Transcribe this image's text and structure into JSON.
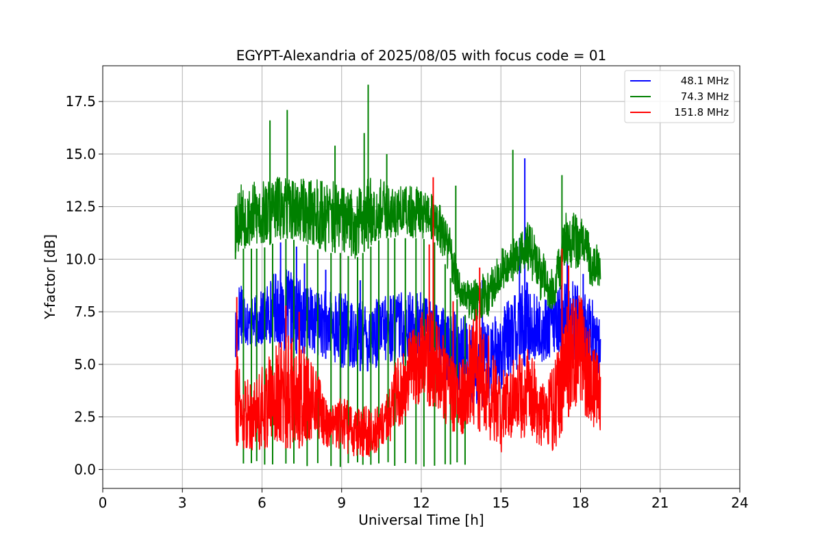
{
  "chart_data": {
    "type": "line",
    "title": "EGYPT-Alexandria of 2025/08/05 with focus code = 01",
    "xlabel": "Universal Time [h]",
    "ylabel": "Y-factor [dB]",
    "xlim": [
      0,
      24
    ],
    "ylim": [
      -0.9,
      19.2
    ],
    "xticks": [
      0,
      3,
      6,
      9,
      12,
      15,
      18,
      21,
      24
    ],
    "xtick_labels": [
      "0",
      "3",
      "6",
      "9",
      "12",
      "15",
      "18",
      "21",
      "24"
    ],
    "yticks": [
      0.0,
      2.5,
      5.0,
      7.5,
      10.0,
      12.5,
      15.0,
      17.5
    ],
    "ytick_labels": [
      "0.0",
      "2.5",
      "5.0",
      "7.5",
      "10.0",
      "12.5",
      "15.0",
      "17.5"
    ],
    "grid": true,
    "legend_position": "top-right",
    "series": [
      {
        "name": "48.1 MHz",
        "color": "#0000ff",
        "x": [
          5.0,
          5.2,
          5.5,
          6.0,
          6.5,
          7.0,
          7.5,
          8.0,
          8.5,
          9.0,
          9.5,
          10.0,
          10.5,
          11.0,
          11.5,
          12.0,
          12.5,
          13.0,
          13.5,
          14.0,
          14.5,
          15.0,
          15.5,
          16.0,
          16.5,
          17.0,
          17.5,
          18.0,
          18.5,
          18.75
        ],
        "low": [
          4.5,
          6.0,
          5.8,
          5.8,
          6.0,
          5.5,
          5.5,
          5.5,
          5.2,
          4.8,
          4.8,
          4.5,
          5.0,
          5.0,
          5.0,
          5.5,
          5.5,
          4.0,
          3.5,
          3.0,
          3.0,
          3.8,
          4.5,
          5.0,
          5.0,
          5.5,
          5.5,
          5.0,
          4.5,
          4.5
        ],
        "high": [
          8.0,
          9.5,
          8.0,
          8.5,
          9.5,
          9.5,
          9.0,
          8.5,
          8.5,
          8.5,
          8.0,
          8.0,
          8.2,
          8.5,
          8.5,
          8.5,
          8.0,
          7.5,
          7.5,
          7.0,
          7.0,
          7.5,
          8.5,
          9.0,
          8.0,
          8.5,
          9.0,
          9.0,
          8.0,
          7.0
        ],
        "spikes": [
          [
            6.7,
            10.8
          ],
          [
            7.3,
            10.6
          ],
          [
            7.6,
            9.8
          ],
          [
            8.4,
            9.5
          ],
          [
            9.7,
            9.0
          ],
          [
            14.3,
            9.0
          ],
          [
            15.9,
            14.8
          ],
          [
            15.7,
            11.0
          ],
          [
            17.5,
            10.3
          ],
          [
            18.1,
            9.3
          ]
        ]
      },
      {
        "name": "74.3 MHz",
        "color": "#008000",
        "x": [
          5.0,
          5.2,
          5.5,
          6.0,
          6.5,
          7.0,
          7.5,
          8.0,
          8.5,
          9.0,
          9.5,
          10.0,
          10.5,
          11.0,
          11.5,
          12.0,
          12.5,
          13.0,
          13.5,
          14.0,
          14.5,
          15.0,
          15.5,
          16.0,
          16.5,
          17.0,
          17.5,
          18.0,
          18.5,
          18.75
        ],
        "low": [
          10.0,
          10.5,
          10.5,
          10.5,
          10.8,
          11.0,
          10.8,
          10.5,
          10.3,
          10.3,
          10.0,
          10.5,
          11.0,
          11.0,
          11.0,
          11.0,
          10.8,
          9.5,
          7.5,
          7.0,
          7.0,
          8.5,
          9.0,
          9.5,
          8.0,
          7.5,
          9.5,
          9.5,
          8.5,
          8.3
        ],
        "high": [
          13.5,
          13.8,
          13.6,
          13.8,
          14.0,
          13.8,
          13.8,
          14.0,
          13.8,
          13.5,
          13.2,
          14.0,
          13.8,
          13.5,
          13.5,
          13.5,
          13.0,
          12.0,
          9.0,
          9.0,
          9.5,
          10.5,
          11.0,
          12.0,
          10.5,
          9.5,
          12.5,
          12.0,
          11.0,
          10.5
        ],
        "spikes": [
          [
            6.3,
            16.6
          ],
          [
            6.95,
            17.1
          ],
          [
            8.75,
            15.4
          ],
          [
            9.85,
            16.0
          ],
          [
            10.0,
            18.3
          ],
          [
            10.7,
            15.0
          ],
          [
            13.3,
            13.5
          ],
          [
            15.45,
            15.2
          ],
          [
            17.3,
            14.0
          ],
          [
            5.0,
            12.5
          ]
        ],
        "dropouts": [
          5.3,
          5.6,
          5.8,
          6.1,
          6.4,
          6.9,
          7.2,
          7.7,
          8.1,
          8.6,
          8.95,
          9.25,
          9.6,
          9.8,
          10.1,
          10.4,
          10.75,
          11.0,
          11.4,
          11.8,
          12.1,
          12.5,
          12.9,
          13.1,
          13.35,
          13.65
        ]
      },
      {
        "name": "151.8 MHz",
        "color": "#ff0000",
        "x": [
          5.0,
          5.2,
          5.5,
          6.0,
          6.5,
          7.0,
          7.5,
          8.0,
          8.5,
          9.0,
          9.5,
          10.0,
          10.5,
          11.0,
          11.5,
          12.0,
          12.5,
          13.0,
          13.5,
          14.0,
          14.5,
          15.0,
          15.5,
          16.0,
          16.5,
          17.0,
          17.5,
          18.0,
          18.5,
          18.75
        ],
        "low": [
          1.2,
          0.9,
          0.9,
          0.9,
          1.0,
          1.0,
          1.0,
          1.5,
          1.0,
          0.8,
          0.6,
          0.5,
          1.0,
          1.5,
          2.5,
          3.0,
          3.0,
          2.0,
          1.5,
          2.0,
          1.5,
          0.8,
          1.5,
          1.5,
          1.0,
          0.8,
          2.5,
          2.5,
          2.0,
          1.8
        ],
        "high": [
          8.0,
          4.0,
          4.5,
          5.0,
          6.0,
          6.5,
          6.0,
          5.0,
          3.0,
          3.5,
          3.0,
          3.0,
          3.0,
          5.0,
          6.5,
          7.5,
          7.5,
          6.0,
          5.0,
          8.0,
          6.5,
          4.5,
          5.5,
          6.0,
          4.5,
          5.0,
          8.0,
          8.5,
          6.0,
          5.0
        ],
        "spikes": [
          [
            5.05,
            8.2
          ],
          [
            12.45,
            13.9
          ],
          [
            12.3,
            10.7
          ],
          [
            13.2,
            8.0
          ],
          [
            14.2,
            9.6
          ],
          [
            17.3,
            10.5
          ],
          [
            17.55,
            9.7
          ],
          [
            6.9,
            7.8
          ],
          [
            7.4,
            7.5
          ]
        ]
      }
    ]
  }
}
